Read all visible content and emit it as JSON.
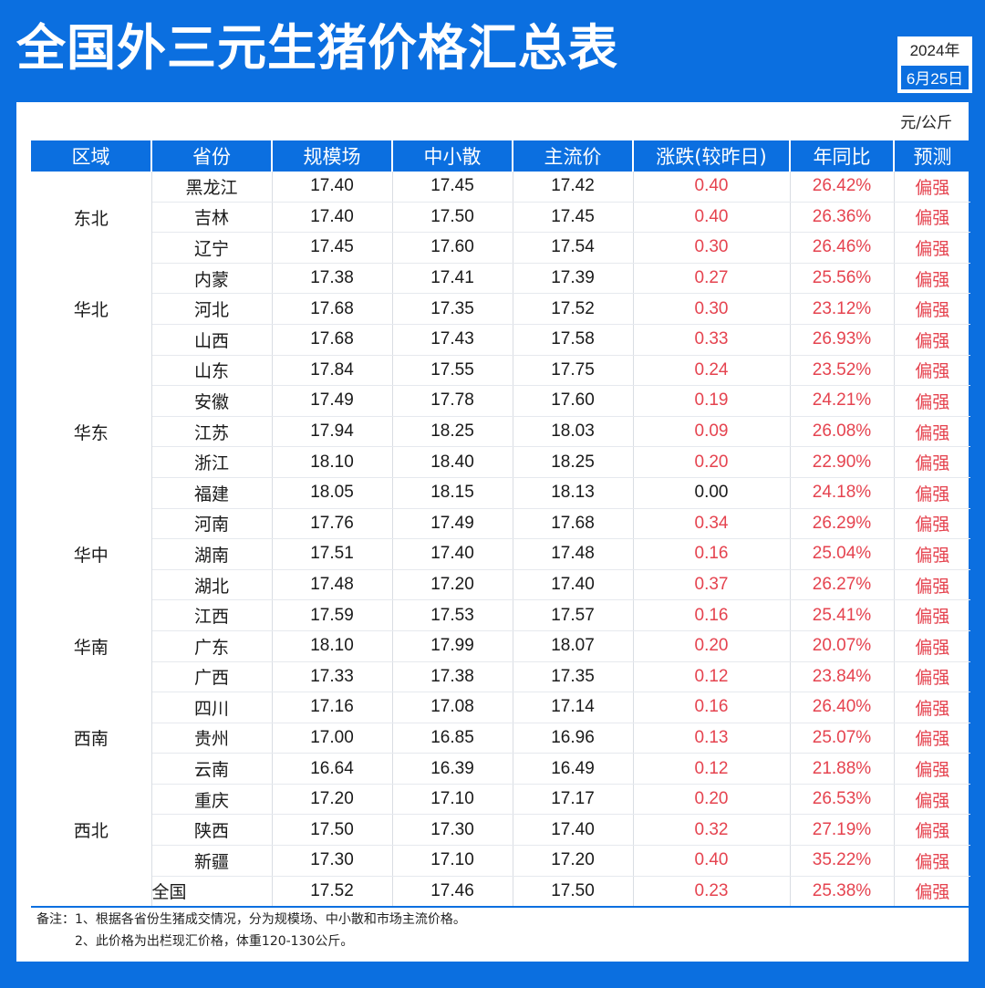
{
  "header": {
    "title": "全国外三元生猪价格汇总表",
    "year": "2024年",
    "day": "6月25日",
    "unit": "元/公斤"
  },
  "colors": {
    "brand_blue": "#0b6fe0",
    "up_red": "#e5434f"
  },
  "table": {
    "columns": [
      "区域",
      "省份",
      "规模场",
      "中小散",
      "主流价",
      "涨跌(较昨日)",
      "年同比",
      "预测"
    ],
    "regions": [
      {
        "name": "东北",
        "rows": [
          [
            "黑龙江",
            "17.40",
            "17.45",
            "17.42",
            "0.40",
            "26.42%",
            "偏强"
          ],
          [
            "吉林",
            "17.40",
            "17.50",
            "17.45",
            "0.40",
            "26.36%",
            "偏强"
          ],
          [
            "辽宁",
            "17.45",
            "17.60",
            "17.54",
            "0.30",
            "26.46%",
            "偏强"
          ]
        ]
      },
      {
        "name": "华北",
        "rows": [
          [
            "内蒙",
            "17.38",
            "17.41",
            "17.39",
            "0.27",
            "25.56%",
            "偏强"
          ],
          [
            "河北",
            "17.68",
            "17.35",
            "17.52",
            "0.30",
            "23.12%",
            "偏强"
          ],
          [
            "山西",
            "17.68",
            "17.43",
            "17.58",
            "0.33",
            "26.93%",
            "偏强"
          ]
        ]
      },
      {
        "name": "华东",
        "rows": [
          [
            "山东",
            "17.84",
            "17.55",
            "17.75",
            "0.24",
            "23.52%",
            "偏强"
          ],
          [
            "安徽",
            "17.49",
            "17.78",
            "17.60",
            "0.19",
            "24.21%",
            "偏强"
          ],
          [
            "江苏",
            "17.94",
            "18.25",
            "18.03",
            "0.09",
            "26.08%",
            "偏强"
          ],
          [
            "浙江",
            "18.10",
            "18.40",
            "18.25",
            "0.20",
            "22.90%",
            "偏强"
          ],
          [
            "福建",
            "18.05",
            "18.15",
            "18.13",
            "0.00",
            "24.18%",
            "偏强"
          ]
        ]
      },
      {
        "name": "华中",
        "rows": [
          [
            "河南",
            "17.76",
            "17.49",
            "17.68",
            "0.34",
            "26.29%",
            "偏强"
          ],
          [
            "湖南",
            "17.51",
            "17.40",
            "17.48",
            "0.16",
            "25.04%",
            "偏强"
          ],
          [
            "湖北",
            "17.48",
            "17.20",
            "17.40",
            "0.37",
            "26.27%",
            "偏强"
          ]
        ]
      },
      {
        "name": "华南",
        "rows": [
          [
            "江西",
            "17.59",
            "17.53",
            "17.57",
            "0.16",
            "25.41%",
            "偏强"
          ],
          [
            "广东",
            "18.10",
            "17.99",
            "18.07",
            "0.20",
            "20.07%",
            "偏强"
          ],
          [
            "广西",
            "17.33",
            "17.38",
            "17.35",
            "0.12",
            "23.84%",
            "偏强"
          ]
        ]
      },
      {
        "name": "西南",
        "rows": [
          [
            "四川",
            "17.16",
            "17.08",
            "17.14",
            "0.16",
            "26.40%",
            "偏强"
          ],
          [
            "贵州",
            "17.00",
            "16.85",
            "16.96",
            "0.13",
            "25.07%",
            "偏强"
          ],
          [
            "云南",
            "16.64",
            "16.39",
            "16.49",
            "0.12",
            "21.88%",
            "偏强"
          ]
        ]
      },
      {
        "name": "西北",
        "rows": [
          [
            "重庆",
            "17.20",
            "17.10",
            "17.17",
            "0.20",
            "26.53%",
            "偏强"
          ],
          [
            "陕西",
            "17.50",
            "17.30",
            "17.40",
            "0.32",
            "27.19%",
            "偏强"
          ],
          [
            "新疆",
            "17.30",
            "17.10",
            "17.20",
            "0.40",
            "35.22%",
            "偏强"
          ]
        ]
      }
    ],
    "total": [
      "全国",
      "17.52",
      "17.46",
      "17.50",
      "0.23",
      "25.38%",
      "偏强"
    ]
  },
  "notes": {
    "line1": "备注：1、根据各省份生猪成交情况，分为规模场、中小散和市场主流价格。",
    "line2": "2、此价格为出栏现汇价格，体重120-130公斤。"
  }
}
